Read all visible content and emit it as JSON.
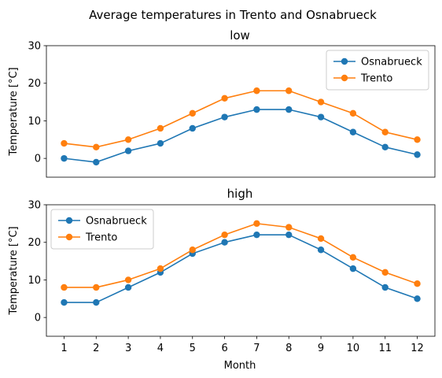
{
  "chart_data": {
    "type": "line",
    "suptitle": "Average temperatures in Trento and Osnabrueck",
    "xlabel": "Month",
    "x": [
      1,
      2,
      3,
      4,
      5,
      6,
      7,
      8,
      9,
      10,
      11,
      12
    ],
    "panels": [
      {
        "title": "low",
        "ylabel": "Temperature [°C]",
        "ylim": [
          -5,
          30
        ],
        "yticks": [
          0,
          10,
          20,
          30
        ],
        "legend_position": "top-right",
        "show_xticks": false,
        "series": [
          {
            "name": "Osnabrueck",
            "color": "#1f77b4",
            "values": [
              0,
              -1,
              2,
              4,
              8,
              11,
              13,
              13,
              11,
              7,
              3,
              1
            ]
          },
          {
            "name": "Trento",
            "color": "#ff7f0e",
            "values": [
              4,
              3,
              5,
              8,
              12,
              16,
              18,
              18,
              15,
              12,
              7,
              5
            ]
          }
        ]
      },
      {
        "title": "high",
        "ylabel": "Temperature [°C]",
        "ylim": [
          -5,
          30
        ],
        "yticks": [
          0,
          10,
          20,
          30
        ],
        "legend_position": "top-left",
        "show_xticks": true,
        "series": [
          {
            "name": "Osnabrueck",
            "color": "#1f77b4",
            "values": [
              4,
              4,
              8,
              12,
              17,
              20,
              22,
              22,
              18,
              13,
              8,
              5
            ]
          },
          {
            "name": "Trento",
            "color": "#ff7f0e",
            "values": [
              8,
              8,
              10,
              13,
              18,
              22,
              25,
              24,
              21,
              16,
              12,
              9
            ]
          }
        ]
      }
    ]
  }
}
